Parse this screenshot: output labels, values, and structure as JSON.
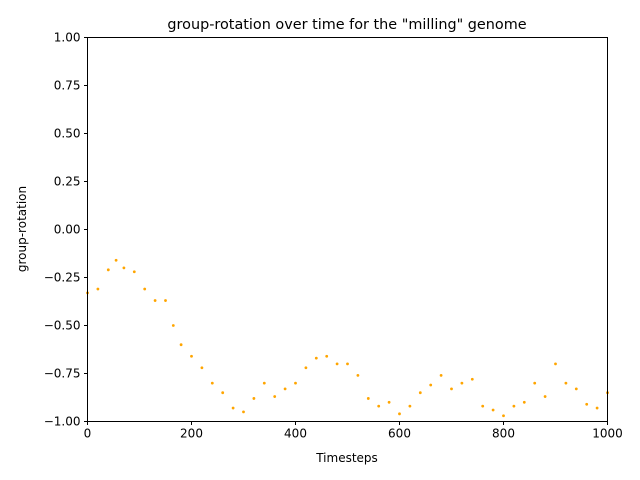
{
  "chart_data": {
    "type": "scatter",
    "title": "group-rotation over time for the \"milling\" genome",
    "xlabel": "Timesteps",
    "ylabel": "group-rotation",
    "xlim": [
      0,
      1000
    ],
    "ylim": [
      -1.0,
      1.0
    ],
    "x_ticks": [
      "0",
      "200",
      "400",
      "600",
      "800",
      "1000"
    ],
    "y_ticks": [
      "−1.00",
      "−0.75",
      "−0.50",
      "−0.25",
      "0.00",
      "0.25",
      "0.50",
      "0.75",
      "1.00"
    ],
    "grid": false,
    "marker_color": "#FFA500",
    "series": [
      {
        "x": [
          0,
          20,
          40,
          55,
          70,
          90,
          110,
          130,
          150,
          165,
          180,
          200,
          220,
          240,
          260,
          280,
          300,
          320,
          340,
          360,
          380,
          400,
          420,
          440,
          460,
          480,
          500,
          520,
          540,
          560,
          580,
          600,
          620,
          640,
          660,
          680,
          700,
          720,
          740,
          760,
          780,
          800,
          820,
          840,
          860,
          880,
          900,
          920,
          940,
          960,
          980,
          1000
        ],
        "y": [
          -0.33,
          -0.31,
          -0.21,
          -0.16,
          -0.2,
          -0.22,
          -0.31,
          -0.37,
          -0.37,
          -0.5,
          -0.6,
          -0.66,
          -0.72,
          -0.8,
          -0.85,
          -0.93,
          -0.95,
          -0.88,
          -0.8,
          -0.87,
          -0.83,
          -0.8,
          -0.72,
          -0.67,
          -0.66,
          -0.7,
          -0.7,
          -0.76,
          -0.88,
          -0.92,
          -0.9,
          -0.96,
          -0.92,
          -0.85,
          -0.81,
          -0.76,
          -0.83,
          -0.8,
          -0.78,
          -0.92,
          -0.94,
          -0.97,
          -0.92,
          -0.9,
          -0.8,
          -0.87,
          -0.7,
          -0.8,
          -0.83,
          -0.91,
          -0.93,
          -0.85
        ]
      }
    ]
  }
}
